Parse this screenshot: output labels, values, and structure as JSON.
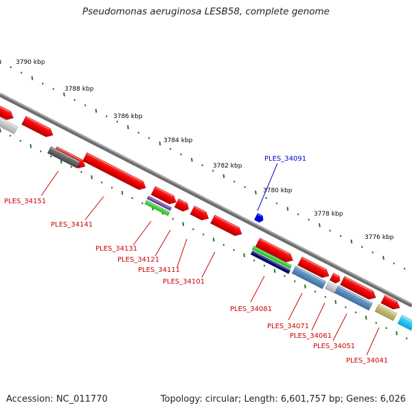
{
  "title": "Pseudomonas aeruginosa LESB58, complete genome",
  "footer": {
    "accession": "Accession: NC_011770",
    "summary": "Topology: circular; Length: 6,601,757 bp; Genes: 6,026"
  },
  "colors": {
    "backbone": "#808080",
    "tick": "#1a7a1a",
    "label_red": "#cc0000",
    "label_blue": "#0000cc"
  },
  "scale_labels": [
    "3790 kbp",
    "3788 kbp",
    "3786 kbp",
    "3784 kbp",
    "3782 kbp",
    "3780 kbp",
    "3778 kbp",
    "3776 kbp"
  ],
  "gene_labels": [
    {
      "name": "PLES_34151",
      "color": "red"
    },
    {
      "name": "PLES_34141",
      "color": "red"
    },
    {
      "name": "PLES_34131",
      "color": "red"
    },
    {
      "name": "PLES_34121",
      "color": "red"
    },
    {
      "name": "PLES_34111",
      "color": "red"
    },
    {
      "name": "PLES_34101",
      "color": "red"
    },
    {
      "name": "PLES_34091",
      "color": "blue"
    },
    {
      "name": "PLES_34081",
      "color": "red"
    },
    {
      "name": "PLES_34071",
      "color": "red"
    },
    {
      "name": "PLES_34061",
      "color": "red"
    },
    {
      "name": "PLES_34051",
      "color": "red"
    },
    {
      "name": "PLES_34041",
      "color": "red"
    }
  ]
}
